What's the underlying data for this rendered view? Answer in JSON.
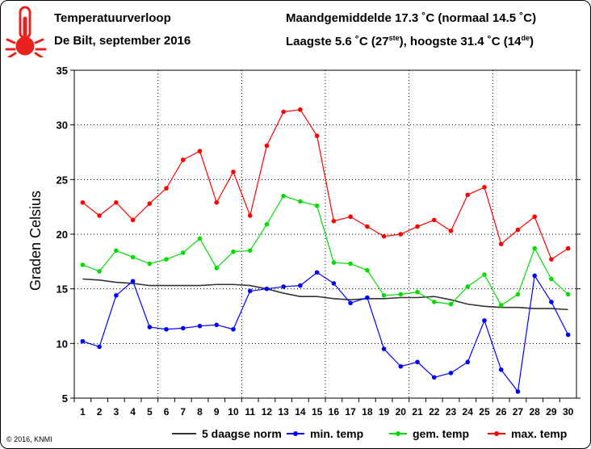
{
  "header": {
    "title": "Temperatuurverloop",
    "subtitle": "De Bilt, september 2016",
    "stats_line1": "Maandgemiddelde 17.3 ˚C (normaal 14.5 ˚C)",
    "stats_line2_pre": "Laagste 5.6 ˚C (27",
    "stats_line2_sup1": "ste",
    "stats_line2_mid": "), hoogste 31.4 ˚C (14",
    "stats_line2_sup2": "de",
    "stats_line2_post": ")"
  },
  "thermometer_icon": "thermometer-icon",
  "copyright": "© 2016, KNMI",
  "colors": {
    "norm": "#333333",
    "min": "#0000ff",
    "gem": "#00dd00",
    "max": "#ff0000",
    "icon": "#e8231f"
  },
  "chart_data": {
    "type": "line",
    "ylabel": "Graden Celsius",
    "xlabel": "",
    "ylim": [
      5,
      35
    ],
    "yticks": [
      5,
      10,
      15,
      20,
      25,
      30,
      35
    ],
    "grid": true,
    "legend_position": "bottom",
    "x": [
      1,
      2,
      3,
      4,
      5,
      6,
      7,
      8,
      9,
      10,
      11,
      12,
      13,
      14,
      15,
      16,
      17,
      18,
      19,
      20,
      21,
      22,
      23,
      24,
      25,
      26,
      27,
      28,
      29,
      30
    ],
    "series": [
      {
        "name": "5 daagse norm",
        "key": "norm",
        "markers": false,
        "values": [
          15.9,
          15.8,
          15.6,
          15.5,
          15.3,
          15.3,
          15.3,
          15.3,
          15.4,
          15.4,
          15.3,
          15.0,
          14.6,
          14.3,
          14.3,
          14.1,
          14.0,
          14.1,
          14.1,
          14.2,
          14.2,
          14.3,
          14.0,
          13.6,
          13.4,
          13.3,
          13.3,
          13.2,
          13.2,
          13.1
        ]
      },
      {
        "name": "min. temp",
        "key": "min",
        "markers": true,
        "values": [
          10.2,
          9.7,
          14.4,
          15.7,
          11.5,
          11.3,
          11.4,
          11.6,
          11.7,
          11.3,
          14.8,
          15.0,
          15.2,
          15.3,
          16.5,
          15.5,
          13.7,
          14.2,
          9.5,
          7.9,
          8.3,
          6.9,
          7.3,
          8.3,
          12.1,
          7.6,
          5.6,
          16.2,
          13.8,
          10.8
        ]
      },
      {
        "name": "gem. temp",
        "key": "gem",
        "markers": true,
        "values": [
          17.2,
          16.6,
          18.5,
          17.9,
          17.3,
          17.7,
          18.3,
          19.6,
          16.9,
          18.4,
          18.5,
          20.9,
          23.5,
          23.0,
          22.6,
          17.4,
          17.3,
          16.7,
          14.4,
          14.5,
          14.7,
          13.8,
          13.6,
          15.2,
          16.3,
          13.5,
          14.5,
          18.7,
          15.9,
          14.5
        ]
      },
      {
        "name": "max. temp",
        "key": "max",
        "markers": true,
        "values": [
          22.9,
          21.7,
          22.9,
          21.3,
          22.8,
          24.2,
          26.8,
          27.6,
          22.9,
          25.7,
          21.7,
          28.1,
          31.2,
          31.4,
          29.0,
          21.2,
          21.6,
          20.7,
          19.8,
          20.0,
          20.7,
          21.3,
          20.3,
          23.6,
          24.3,
          19.1,
          20.4,
          21.6,
          17.7,
          18.7
        ]
      }
    ]
  }
}
